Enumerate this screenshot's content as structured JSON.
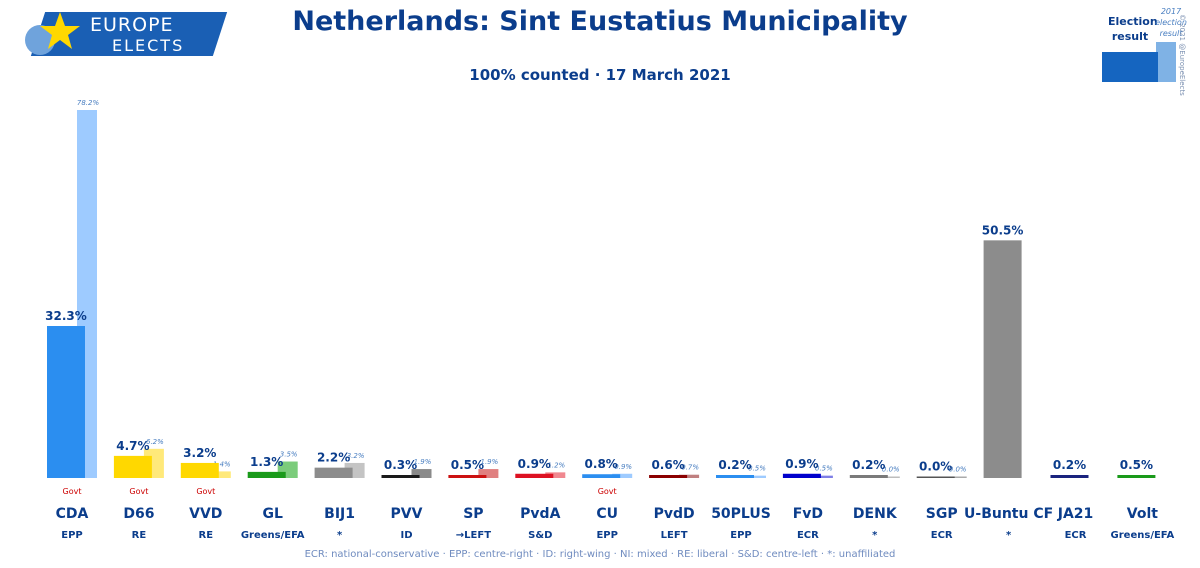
{
  "header": {
    "logo_line1": "EUROPE",
    "logo_line2": "ELECTS",
    "title": "Netherlands: Sint Eustatius Municipality",
    "subtitle": "100% counted · 17 March 2021"
  },
  "legend": {
    "current_label": "Election result",
    "previous_label": "2017 election result",
    "current_color": "#1565c0",
    "previous_color": "#7fb2e5"
  },
  "copyright": "© 2021 @EuropeElects",
  "footnote": "ECR: national-conservative · EPP: centre-right · ID: right-wing · NI: mixed · RE: liberal · S&D: centre-left · *: unaffiliated",
  "chart_data": {
    "type": "bar",
    "title": "Netherlands: Sint Eustatius Municipality",
    "subtitle": "100% counted · 17 March 2021",
    "ylim": [
      0,
      80
    ],
    "grid": false,
    "categories": [
      "CDA",
      "D66",
      "VVD",
      "GL",
      "BIJ1",
      "PVV",
      "SP",
      "PvdA",
      "CU",
      "PvdD",
      "50PLUS",
      "FvD",
      "DENK",
      "SGP",
      "U-Buntu CF",
      "JA21",
      "Volt"
    ],
    "groups": [
      "EPP",
      "RE",
      "RE",
      "Greens/EFA",
      "*",
      "ID",
      "→LEFT",
      "S&D",
      "EPP",
      "LEFT",
      "EPP",
      "ECR",
      "*",
      "ECR",
      "*",
      "ECR",
      "Greens/EFA"
    ],
    "series": [
      {
        "name": "Election result",
        "values": [
          32.3,
          4.7,
          3.2,
          1.3,
          2.2,
          0.3,
          0.5,
          0.9,
          0.8,
          0.6,
          0.2,
          0.9,
          0.2,
          0.0,
          50.5,
          0.2,
          0.5
        ],
        "labels": [
          "32.3%",
          "4.7%",
          "3.2%",
          "1.3%",
          "2.2%",
          "0.3%",
          "0.5%",
          "0.9%",
          "0.8%",
          "0.6%",
          "0.2%",
          "0.9%",
          "0.2%",
          "0.0%",
          "50.5%",
          "0.2%",
          "0.5%"
        ]
      },
      {
        "name": "2017 election result",
        "values": [
          78.2,
          6.2,
          1.4,
          3.5,
          3.2,
          1.9,
          1.9,
          1.2,
          0.9,
          0.7,
          0.5,
          0.5,
          0.0,
          0.0,
          null,
          null,
          null
        ],
        "labels": [
          "78.2%",
          "6.2%",
          "1.4%",
          "3.5%",
          "3.2%",
          "1.9%",
          "1.9%",
          "1.2%",
          "0.9%",
          "0.7%",
          "0.5%",
          "0.5%",
          "0.0%",
          "0.0%",
          "",
          "",
          ""
        ]
      }
    ],
    "colors": [
      "#2b8ef0",
      "#ffd800",
      "#ffd800",
      "#1a9a1a",
      "#8c8c8c",
      "#1a1a1a",
      "#cc1111",
      "#dd1122",
      "#2b8ef0",
      "#8b0000",
      "#2b8ef0",
      "#0000cc",
      "#7a7a7a",
      "#555555",
      "#8c8c8c",
      "#1a237e",
      "#1a9a1a"
    ],
    "prev_colors": [
      "#9ecbff",
      "#ffe97a",
      "#ffe97a",
      "#7bcc7b",
      "#c4c4c4",
      "#8a8a8a",
      "#e08080",
      "#f08890",
      "#9ecbff",
      "#c08080",
      "#9ecbff",
      "#7f7fe6",
      "#bdbdbd",
      "#aaaaaa",
      "#c4c4c4",
      "#8f96d6",
      "#7bcc7b"
    ],
    "govt": [
      true,
      true,
      true,
      false,
      false,
      false,
      false,
      false,
      true,
      false,
      false,
      false,
      false,
      false,
      false,
      false,
      false
    ],
    "govt_label": "Govt"
  }
}
